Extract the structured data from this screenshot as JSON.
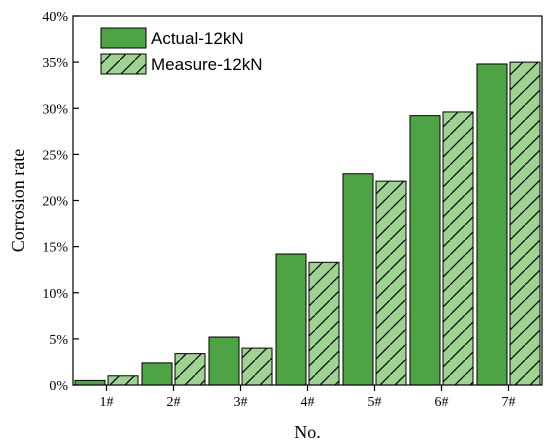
{
  "chart_data": {
    "type": "bar",
    "title": "",
    "xlabel": "No.",
    "ylabel": "Corrosion rate",
    "categories": [
      "1#",
      "2#",
      "3#",
      "4#",
      "5#",
      "6#",
      "7#"
    ],
    "ylim": [
      0,
      40
    ],
    "yticks": [
      0,
      5,
      10,
      15,
      20,
      25,
      30,
      35,
      40
    ],
    "ytick_labels": [
      "0%",
      "5%",
      "10%",
      "15%",
      "20%",
      "25%",
      "30%",
      "35%",
      "40%"
    ],
    "legend_position": "top-left",
    "grid": false,
    "series": [
      {
        "name": "Actual-12kN",
        "values": [
          0.5,
          2.4,
          5.2,
          14.2,
          22.9,
          29.2,
          34.8
        ],
        "color": "#4ea345",
        "pattern": "solid"
      },
      {
        "name": "Measure-12kN",
        "values": [
          1.0,
          3.4,
          4.0,
          13.3,
          22.1,
          29.6,
          35.0
        ],
        "color": "#9fd391",
        "pattern": "hatch"
      }
    ]
  }
}
